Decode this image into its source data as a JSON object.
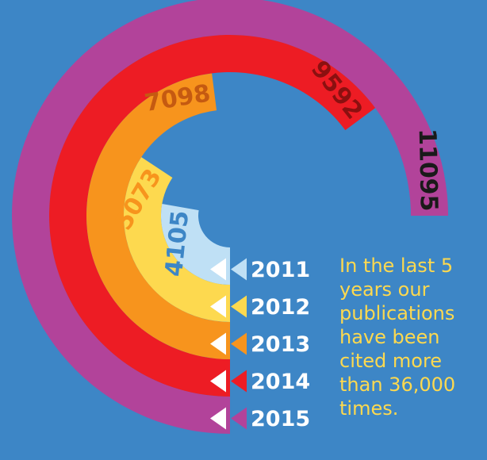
{
  "chart_data": {
    "type": "radial_bar",
    "categories": [
      "2011",
      "2012",
      "2013",
      "2014",
      "2015"
    ],
    "values": [
      4105,
      5073,
      7098,
      9592,
      11095
    ],
    "colors": [
      "#bfe0f5",
      "#fdd94f",
      "#f7941d",
      "#ed1c24",
      "#b2439a"
    ],
    "label_colors": [
      "#3d86c6",
      "#f7941d",
      "#c55a11",
      "#8b1010",
      "#1a1a1a"
    ],
    "annotation": "In the last 5 years our publications have been cited more than 36,000 times."
  }
}
